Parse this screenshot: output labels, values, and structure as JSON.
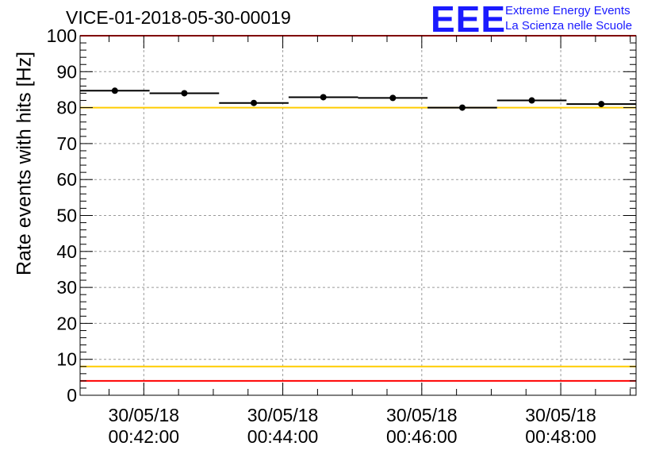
{
  "header": {
    "title": "VICE-01-2018-05-30-00019",
    "logo_mark": "EEE",
    "logo_line1": "Extreme Energy Events",
    "logo_line2": "La Scienza nelle Scuole"
  },
  "colors": {
    "logo": "#1a1aff",
    "limit_red": "#ff0000",
    "limit_yellow": "#ffcc00",
    "grid": "#9a9a9a",
    "data": "#000000"
  },
  "chart_data": {
    "type": "scatter",
    "ylabel": "Rate events with hits [Hz]",
    "ylim": [
      0,
      100
    ],
    "y_ticks": [
      0,
      10,
      20,
      30,
      40,
      50,
      60,
      70,
      80,
      90,
      100
    ],
    "x_range": [
      "2018-05-30T00:41:05",
      "2018-05-30T00:49:05"
    ],
    "x_ticks": [
      {
        "date": "30/05/18",
        "time": "00:42:00"
      },
      {
        "date": "30/05/18",
        "time": "00:44:00"
      },
      {
        "date": "30/05/18",
        "time": "00:46:00"
      },
      {
        "date": "30/05/18",
        "time": "00:48:00"
      }
    ],
    "grid": true,
    "series": [
      {
        "points": [
          {
            "x_start": "00:41:05",
            "x_end": "00:42:05",
            "y": 84.7,
            "err": 0.8
          },
          {
            "x_start": "00:42:05",
            "x_end": "00:43:05",
            "y": 84.0,
            "err": 0.8
          },
          {
            "x_start": "00:43:05",
            "x_end": "00:44:05",
            "y": 81.3,
            "err": 0.8
          },
          {
            "x_start": "00:44:05",
            "x_end": "00:45:05",
            "y": 82.9,
            "err": 0.8
          },
          {
            "x_start": "00:45:05",
            "x_end": "00:46:05",
            "y": 82.7,
            "err": 0.8
          },
          {
            "x_start": "00:46:05",
            "x_end": "00:47:05",
            "y": 80.0,
            "err": 0.8
          },
          {
            "x_start": "00:47:05",
            "x_end": "00:48:05",
            "y": 82.0,
            "err": 0.8
          },
          {
            "x_start": "00:48:05",
            "x_end": "00:49:05",
            "y": 81.0,
            "err": 0.8
          }
        ]
      }
    ],
    "reference_lines": [
      {
        "y": 100,
        "color": "#ff0000"
      },
      {
        "y": 80,
        "color": "#ffcc00"
      },
      {
        "y": 8,
        "color": "#ffcc00"
      },
      {
        "y": 4,
        "color": "#ff0000"
      }
    ]
  }
}
